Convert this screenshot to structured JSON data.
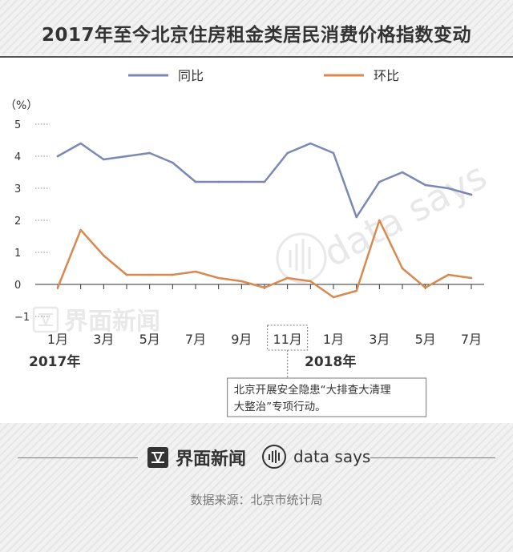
{
  "title": "2017年至今北京住房租金类居民消费价格指数变动",
  "chart_data": {
    "type": "line",
    "x": [
      "2017-01",
      "2017-02",
      "2017-03",
      "2017-04",
      "2017-05",
      "2017-06",
      "2017-07",
      "2017-08",
      "2017-09",
      "2017-10",
      "2017-11",
      "2017-12",
      "2018-01",
      "2018-02",
      "2018-03",
      "2018-04",
      "2018-05",
      "2018-06",
      "2018-07"
    ],
    "x_tick_labels": [
      "1月",
      "",
      "3月",
      "",
      "5月",
      "",
      "7月",
      "",
      "9月",
      "",
      "11月",
      "",
      "1月",
      "",
      "3月",
      "",
      "5月",
      "",
      "7月"
    ],
    "year_labels": [
      {
        "label": "2017年",
        "x": "2017-01"
      },
      {
        "label": "2018年",
        "x": "2018-01"
      }
    ],
    "series": [
      {
        "name": "同比",
        "color": "#7b88b5",
        "values": [
          4.0,
          4.4,
          3.9,
          4.0,
          4.1,
          3.8,
          3.2,
          3.2,
          3.2,
          3.2,
          4.1,
          4.4,
          4.1,
          2.1,
          3.2,
          3.5,
          3.1,
          3.0,
          2.8
        ]
      },
      {
        "name": "环比",
        "color": "#d9894f",
        "values": [
          -0.1,
          1.7,
          0.9,
          0.3,
          0.3,
          0.3,
          0.4,
          0.2,
          0.1,
          -0.1,
          0.2,
          0.1,
          -0.4,
          -0.2,
          2.0,
          0.5,
          -0.1,
          0.3,
          0.2
        ]
      }
    ],
    "ylabel": "（%）",
    "ylim": [
      -1,
      5
    ],
    "y_ticks": [
      -1,
      0,
      1,
      2,
      3,
      4,
      5
    ],
    "legend_position": "top",
    "highlight": {
      "x": "2017-11"
    },
    "annotation": {
      "x": "2017-11",
      "lines": [
        "北京开展安全隐患“大排查大清理",
        "大整治”专项行动。"
      ]
    }
  },
  "watermarks": {
    "jiemian": "界面新闻",
    "datasays": "data says"
  },
  "footer": {
    "jiemian": "界面新闻",
    "datasays": "data says"
  },
  "source": "数据来源：北京市统计局"
}
